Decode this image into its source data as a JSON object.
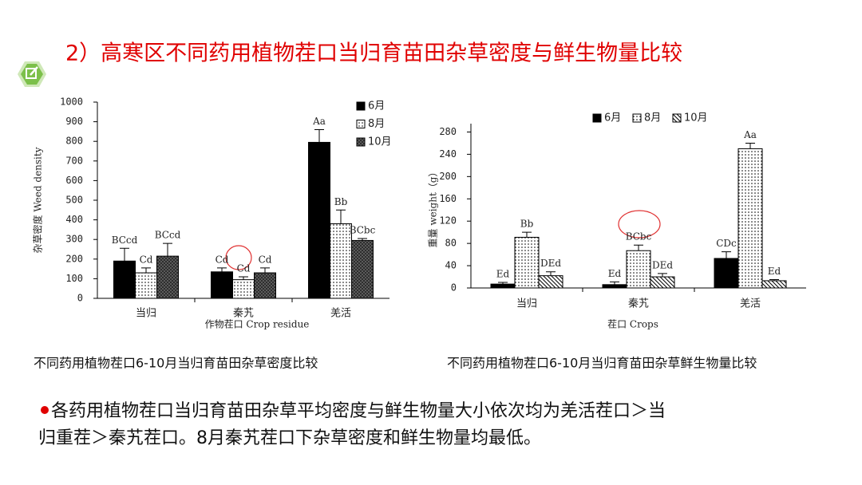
{
  "slide": {
    "title": "2）高寒区不同药用植物茬口当归育苗田杂草密度与鲜生物量比较",
    "captions": [
      "不同药用植物茬口6-10月当归育苗田杂草密度比较",
      "不同药用植物茬口6-10月当归育苗田杂草鲜生物量比较"
    ],
    "bullet": [
      "各药用植物茬口当归育苗田杂草平均密度与鲜生物量大小依次均为羌活茬口＞当",
      "归重茬＞秦艽茬口。8月秦艽茬口下杂草密度和鲜生物量均最低。"
    ]
  },
  "chart_data": [
    {
      "type": "bar",
      "ylabel": "杂草密度 Weed density",
      "xlabel": "作物茬口 Crop residue",
      "categories": [
        "当归",
        "秦艽",
        "羌活"
      ],
      "legend": "vertical",
      "series": [
        {
          "name": "6月",
          "color": "#000000",
          "pattern": "solid",
          "values": [
            190,
            135,
            795
          ],
          "errors": [
            65,
            20,
            65
          ],
          "letters": [
            "BCcd",
            "Cd",
            "Aa"
          ]
        },
        {
          "name": "8月",
          "color": "#ffffff",
          "pattern": "dots",
          "values": [
            130,
            95,
            380
          ],
          "errors": [
            25,
            15,
            70
          ],
          "letters": [
            "Cd",
            "Cd",
            "Bb"
          ]
        },
        {
          "name": "10月",
          "color": "#555555",
          "pattern": "crosshatch",
          "values": [
            215,
            130,
            295
          ],
          "errors": [
            65,
            25,
            10
          ],
          "letters": [
            "BCcd",
            "Cd",
            "BCbc"
          ]
        }
      ],
      "ylim": [
        0,
        1000
      ],
      "yticks": [
        0,
        100,
        200,
        300,
        400,
        500,
        600,
        700,
        800,
        900,
        1000
      ]
    },
    {
      "type": "bar",
      "ylabel": "重量 weight（g）",
      "xlabel": "茬口 Crops",
      "categories": [
        "当归",
        "秦艽",
        "羌活"
      ],
      "legend": "horizontal",
      "series": [
        {
          "name": "6月",
          "color": "#000000",
          "pattern": "solid",
          "values": [
            7,
            6,
            53
          ],
          "errors": [
            3,
            5,
            12
          ],
          "letters": [
            "Ed",
            "Ed",
            "CDc"
          ]
        },
        {
          "name": "8月",
          "color": "#ffffff",
          "pattern": "dots",
          "values": [
            91,
            67,
            250
          ],
          "errors": [
            9,
            10,
            10
          ],
          "letters": [
            "Bb",
            "BCbc",
            "Aa"
          ]
        },
        {
          "name": "10月",
          "color": "#555555",
          "pattern": "hatch",
          "values": [
            22,
            20,
            13
          ],
          "errors": [
            7,
            6,
            2
          ],
          "letters": [
            "DEd",
            "DEd",
            "Ed"
          ]
        }
      ],
      "ylim": [
        0,
        295
      ],
      "yticks": [
        0,
        40,
        80,
        120,
        160,
        200,
        240,
        280
      ]
    }
  ]
}
